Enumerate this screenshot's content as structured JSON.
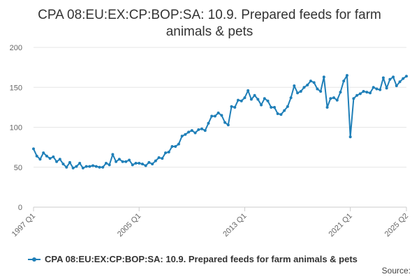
{
  "chart_data": {
    "type": "line",
    "title": "CPA 08:EU:EX:CP:BOP:SA: 10.9. Prepared feeds for farm animals & pets",
    "xlabel": "",
    "ylabel": "",
    "ylim": [
      0,
      200
    ],
    "yticks": [
      0,
      50,
      100,
      150,
      200
    ],
    "xlim": [
      "1997 Q1",
      "2025 Q2"
    ],
    "xtick_labels": [
      "1997 Q1",
      "2005 Q1",
      "2013 Q1",
      "2021 Q1",
      "2025 Q2"
    ],
    "grid": true,
    "legend_position": "bottom",
    "source_label": "Source:",
    "x": [
      "1997 Q1",
      "1997 Q2",
      "1997 Q3",
      "1997 Q4",
      "1998 Q1",
      "1998 Q2",
      "1998 Q3",
      "1998 Q4",
      "1999 Q1",
      "1999 Q2",
      "1999 Q3",
      "1999 Q4",
      "2000 Q1",
      "2000 Q2",
      "2000 Q3",
      "2000 Q4",
      "2001 Q1",
      "2001 Q2",
      "2001 Q3",
      "2001 Q4",
      "2002 Q1",
      "2002 Q2",
      "2002 Q3",
      "2002 Q4",
      "2003 Q1",
      "2003 Q2",
      "2003 Q3",
      "2003 Q4",
      "2004 Q1",
      "2004 Q2",
      "2004 Q3",
      "2004 Q4",
      "2005 Q1",
      "2005 Q2",
      "2005 Q3",
      "2005 Q4",
      "2006 Q1",
      "2006 Q2",
      "2006 Q3",
      "2006 Q4",
      "2007 Q1",
      "2007 Q2",
      "2007 Q3",
      "2007 Q4",
      "2008 Q1",
      "2008 Q2",
      "2008 Q3",
      "2008 Q4",
      "2009 Q1",
      "2009 Q2",
      "2009 Q3",
      "2009 Q4",
      "2010 Q1",
      "2010 Q2",
      "2010 Q3",
      "2010 Q4",
      "2011 Q1",
      "2011 Q2",
      "2011 Q3",
      "2011 Q4",
      "2012 Q1",
      "2012 Q2",
      "2012 Q3",
      "2012 Q4",
      "2013 Q1",
      "2013 Q2",
      "2013 Q3",
      "2013 Q4",
      "2014 Q1",
      "2014 Q2",
      "2014 Q3",
      "2014 Q4",
      "2015 Q1",
      "2015 Q2",
      "2015 Q3",
      "2015 Q4",
      "2016 Q1",
      "2016 Q2",
      "2016 Q3",
      "2016 Q4",
      "2017 Q1",
      "2017 Q2",
      "2017 Q3",
      "2017 Q4",
      "2018 Q1",
      "2018 Q2",
      "2018 Q3",
      "2018 Q4",
      "2019 Q1",
      "2019 Q2",
      "2019 Q3",
      "2019 Q4",
      "2020 Q1",
      "2020 Q2",
      "2020 Q3",
      "2020 Q4",
      "2021 Q1",
      "2021 Q2",
      "2021 Q3",
      "2021 Q4",
      "2022 Q1",
      "2022 Q2",
      "2022 Q3",
      "2022 Q4",
      "2023 Q1",
      "2023 Q2",
      "2023 Q3",
      "2023 Q4",
      "2024 Q1",
      "2024 Q2",
      "2024 Q3",
      "2024 Q4",
      "2025 Q1",
      "2025 Q2"
    ],
    "series": [
      {
        "name": "CPA 08:EU:EX:CP:BOP:SA: 10.9. Prepared feeds for farm animals & pets",
        "color": "#1f7fb8",
        "values": [
          73,
          64,
          60,
          68,
          64,
          61,
          63,
          57,
          60,
          54,
          50,
          56,
          49,
          51,
          55,
          49,
          51,
          51,
          52,
          51,
          50,
          50,
          55,
          53,
          66,
          57,
          60,
          57,
          57,
          59,
          53,
          55,
          55,
          54,
          52,
          56,
          54,
          58,
          62,
          61,
          68,
          69,
          76,
          76,
          79,
          89,
          91,
          94,
          96,
          93,
          97,
          98,
          96,
          105,
          114,
          114,
          118,
          115,
          106,
          103,
          126,
          125,
          134,
          133,
          137,
          146,
          135,
          140,
          135,
          128,
          136,
          133,
          125,
          125,
          117,
          116,
          121,
          126,
          137,
          152,
          143,
          145,
          150,
          153,
          158,
          156,
          148,
          145,
          163,
          125,
          136,
          137,
          134,
          144,
          158,
          165,
          88,
          136,
          140,
          142,
          145,
          144,
          143,
          150,
          148,
          147,
          162,
          149,
          160,
          163,
          152,
          157,
          161,
          164
        ]
      }
    ]
  }
}
